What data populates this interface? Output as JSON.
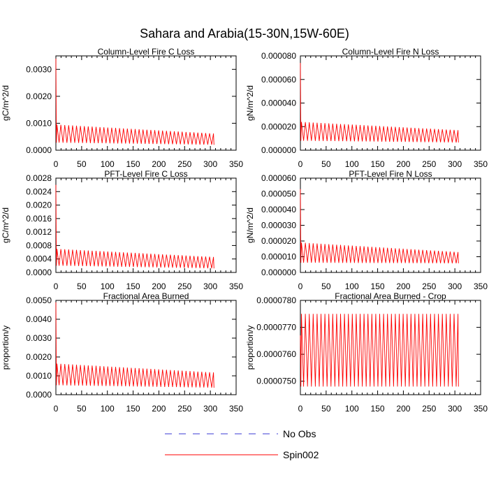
{
  "page": {
    "title": "Sahara and Arabia(15-30N,15W-60E)"
  },
  "legend": [
    {
      "name": "No Obs",
      "color": "#3a3ad6",
      "dash": "dashed"
    },
    {
      "name": "Spin002",
      "color": "#ff0000",
      "dash": "solid"
    }
  ],
  "colors": {
    "series": "#ff0000",
    "axis": "#000000"
  },
  "chart_data": [
    {
      "type": "line",
      "title": "Column-Level Fire C Loss",
      "ylabel": "gC/m^2/d",
      "xlim": [
        0,
        350
      ],
      "xticks": [
        0,
        50,
        100,
        150,
        200,
        250,
        300,
        350
      ],
      "ylim": [
        0,
        0.0035
      ],
      "yticks": [
        "0.0000",
        "0.0010",
        "0.0020",
        "0.0030"
      ],
      "ytick_values": [
        0,
        0.001,
        0.002,
        0.003
      ],
      "series": [
        {
          "name": "Spin002",
          "color": "#ff0000",
          "initial": 0.0034,
          "high_start": 0.00095,
          "high_end": 0.00062,
          "low_start": 0.00028,
          "low_end": 0.0002,
          "x_end": 307,
          "period": 7.6
        }
      ]
    },
    {
      "type": "line",
      "title": "Column-Level Fire N Loss",
      "ylabel": "gN/m^2/d",
      "xlim": [
        0,
        350
      ],
      "xticks": [
        0,
        50,
        100,
        150,
        200,
        250,
        300,
        350
      ],
      "ylim": [
        0,
        8e-05
      ],
      "yticks": [
        "0.000000",
        "0.000020",
        "0.000040",
        "0.000060",
        "0.000080"
      ],
      "ytick_values": [
        0,
        2e-05,
        4e-05,
        6e-05,
        8e-05
      ],
      "series": [
        {
          "name": "Spin002",
          "color": "#ff0000",
          "initial": 7.4e-05,
          "high_start": 2.4e-05,
          "high_end": 1.7e-05,
          "low_start": 8e-06,
          "low_end": 6.5e-06,
          "x_end": 307,
          "period": 7.6
        }
      ]
    },
    {
      "type": "line",
      "title": "PFT-Level Fire C Loss",
      "ylabel": "gC/m^2/d",
      "xlim": [
        0,
        350
      ],
      "xticks": [
        0,
        50,
        100,
        150,
        200,
        250,
        300,
        350
      ],
      "ylim": [
        0,
        0.0028
      ],
      "yticks": [
        "0.0000",
        "0.0004",
        "0.0008",
        "0.0012",
        "0.0016",
        "0.0020",
        "0.0024",
        "0.0028"
      ],
      "ytick_values": [
        0,
        0.0004,
        0.0008,
        0.0012,
        0.0016,
        0.002,
        0.0024,
        0.0028
      ],
      "series": [
        {
          "name": "Spin002",
          "color": "#ff0000",
          "initial": 0.0026,
          "high_start": 0.0007,
          "high_end": 0.00046,
          "low_start": 0.0002,
          "low_end": 0.00012,
          "x_end": 307,
          "period": 7.6
        }
      ]
    },
    {
      "type": "line",
      "title": "PFT-Level Fire N Loss",
      "ylabel": "gN/m^2/d",
      "xlim": [
        0,
        350
      ],
      "xticks": [
        0,
        50,
        100,
        150,
        200,
        250,
        300,
        350
      ],
      "ylim": [
        0,
        6e-05
      ],
      "yticks": [
        "0.000000",
        "0.000010",
        "0.000020",
        "0.000030",
        "0.000040",
        "0.000050",
        "0.000060"
      ],
      "ytick_values": [
        0,
        1e-05,
        2e-05,
        3e-05,
        4e-05,
        5e-05,
        6e-05
      ],
      "series": [
        {
          "name": "Spin002",
          "color": "#ff0000",
          "initial": 5.3e-05,
          "high_start": 1.9e-05,
          "high_end": 1.3e-05,
          "low_start": 6.2e-06,
          "low_end": 5.8e-06,
          "x_end": 307,
          "period": 7.6
        }
      ]
    },
    {
      "type": "line",
      "title": "Fractional Area Burned",
      "ylabel": "proportion/y",
      "xlim": [
        0,
        350
      ],
      "xticks": [
        0,
        50,
        100,
        150,
        200,
        250,
        300,
        350
      ],
      "ylim": [
        0,
        0.005
      ],
      "yticks": [
        "0.0000",
        "0.0010",
        "0.0020",
        "0.0030",
        "0.0040",
        "0.0050"
      ],
      "ytick_values": [
        0,
        0.001,
        0.002,
        0.003,
        0.004,
        0.005
      ],
      "series": [
        {
          "name": "Spin002",
          "color": "#ff0000",
          "initial": 0.0049,
          "high_start": 0.00165,
          "high_end": 0.00118,
          "low_start": 0.0005,
          "low_end": 0.00037,
          "x_end": 307,
          "period": 7.6
        }
      ]
    },
    {
      "type": "line",
      "title": "Fractional Area Burned - Crop",
      "ylabel": "proportion/y",
      "xlim": [
        0,
        350
      ],
      "xticks": [
        0,
        50,
        100,
        150,
        200,
        250,
        300,
        350
      ],
      "ylim": [
        7.45e-05,
        7.8e-05
      ],
      "yticks": [
        "0.0000750",
        "0.0000760",
        "0.0000770",
        "0.0000780"
      ],
      "ytick_values": [
        7.5e-05,
        7.6e-05,
        7.7e-05,
        7.8e-05
      ],
      "series": [
        {
          "name": "Spin002",
          "color": "#ff0000",
          "initial": 7.67e-05,
          "high_start": 7.75e-05,
          "high_end": 7.75e-05,
          "low_start": 7.48e-05,
          "low_end": 7.48e-05,
          "x_end": 307,
          "period": 7.6
        }
      ]
    }
  ]
}
